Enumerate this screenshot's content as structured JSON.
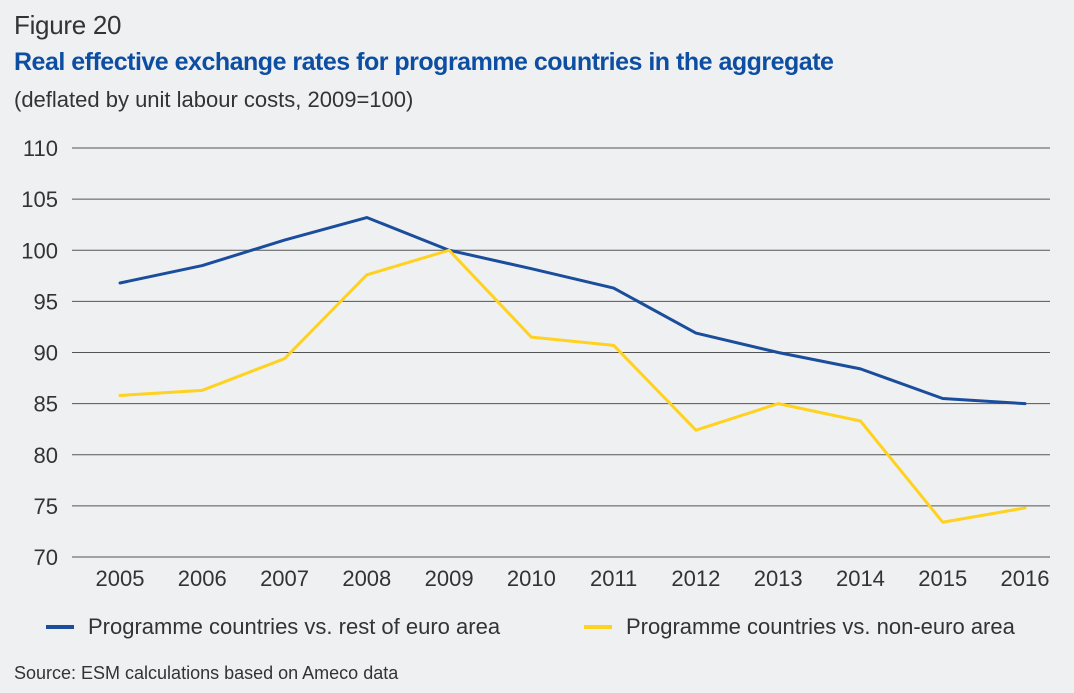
{
  "figure_label": "Figure 20",
  "title": "Real effective exchange rates for programme countries in the aggregate",
  "subtitle": "(deflated by unit labour costs, 2009=100)",
  "source": "Source: ESM calculations based on Ameco data",
  "colors": {
    "series_euro": "#1a4e9c",
    "series_non_euro": "#ffd21f",
    "grid": "#555555",
    "text": "#333333",
    "title": "#0d4ea2"
  },
  "chart_data": {
    "type": "line",
    "title": "Real effective exchange rates for programme countries in the aggregate",
    "subtitle": "(deflated by unit labour costs, 2009=100)",
    "xlabel": "",
    "ylabel": "",
    "x": [
      "2005",
      "2006",
      "2007",
      "2008",
      "2009",
      "2010",
      "2011",
      "2012",
      "2013",
      "2014",
      "2015",
      "2016"
    ],
    "ylim": [
      70,
      110
    ],
    "yticks": [
      "70",
      "75",
      "80",
      "85",
      "90",
      "95",
      "100",
      "105",
      "110"
    ],
    "grid": "horizontal",
    "legend_position": "bottom",
    "series": [
      {
        "name": "Programme countries vs. rest of euro area",
        "color": "#1a4e9c",
        "values": [
          96.8,
          98.5,
          101.0,
          103.2,
          100.0,
          98.2,
          96.3,
          91.9,
          90.0,
          88.4,
          85.5,
          85.0
        ]
      },
      {
        "name": "Programme countries vs. non-euro area",
        "color": "#ffd21f",
        "values": [
          85.8,
          86.3,
          89.4,
          97.6,
          100.0,
          91.5,
          90.7,
          82.4,
          85.0,
          83.3,
          73.4,
          74.8
        ]
      }
    ]
  }
}
